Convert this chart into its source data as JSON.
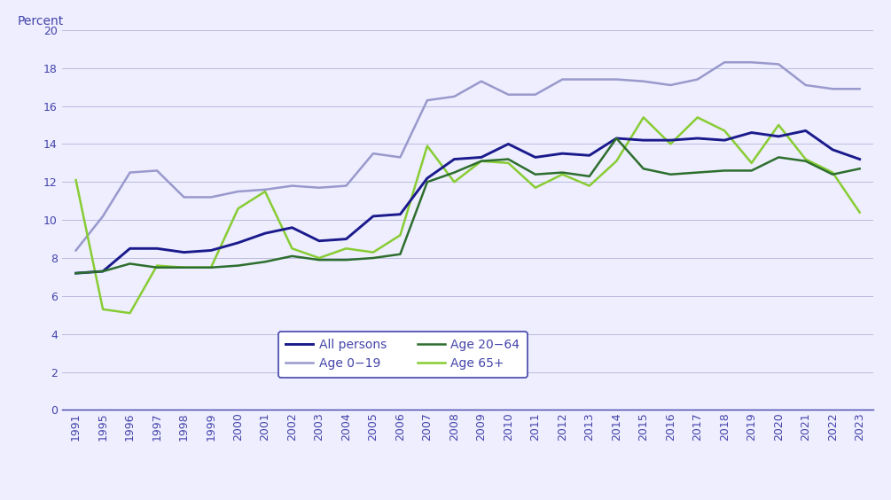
{
  "years": [
    1991,
    1995,
    1996,
    1997,
    1998,
    1999,
    2000,
    2001,
    2002,
    2003,
    2004,
    2005,
    2006,
    2007,
    2008,
    2009,
    2010,
    2011,
    2012,
    2013,
    2014,
    2015,
    2016,
    2017,
    2018,
    2019,
    2020,
    2021,
    2022,
    2023
  ],
  "all_persons": [
    7.2,
    7.3,
    8.5,
    8.5,
    8.3,
    8.4,
    8.8,
    9.3,
    9.6,
    8.9,
    9.0,
    10.2,
    10.3,
    12.2,
    13.2,
    13.3,
    14.0,
    13.3,
    13.5,
    13.4,
    14.3,
    14.2,
    14.2,
    14.3,
    14.2,
    14.6,
    14.4,
    14.7,
    13.7,
    13.2
  ],
  "age_0_19": [
    8.4,
    10.2,
    12.5,
    12.6,
    11.2,
    11.2,
    11.5,
    11.6,
    11.8,
    11.7,
    11.8,
    13.5,
    13.3,
    16.3,
    16.5,
    17.3,
    16.6,
    16.6,
    17.4,
    17.4,
    17.4,
    17.3,
    17.1,
    17.4,
    18.3,
    18.3,
    18.2,
    17.1,
    16.9,
    16.9
  ],
  "age_20_64": [
    7.2,
    7.3,
    7.7,
    7.5,
    7.5,
    7.5,
    7.6,
    7.8,
    8.1,
    7.9,
    7.9,
    8.0,
    8.2,
    12.0,
    12.5,
    13.1,
    13.2,
    12.4,
    12.5,
    12.3,
    14.3,
    12.7,
    12.4,
    12.5,
    12.6,
    12.6,
    13.3,
    13.1,
    12.4,
    12.7
  ],
  "age_65plus": [
    12.1,
    5.3,
    5.1,
    7.6,
    7.5,
    7.5,
    10.6,
    11.5,
    8.5,
    8.0,
    8.5,
    8.3,
    9.2,
    13.9,
    12.0,
    13.1,
    13.0,
    11.7,
    12.4,
    11.8,
    13.1,
    15.4,
    14.0,
    15.4,
    14.7,
    13.0,
    15.0,
    13.2,
    12.5,
    10.4
  ],
  "color_all_persons": "#1a1a8c",
  "color_age_0_19": "#9999cc",
  "color_age_20_64": "#2d6e2d",
  "color_age_65plus": "#88cc33",
  "ylabel": "Percent",
  "ylim": [
    0,
    20
  ],
  "yticks": [
    0,
    2,
    4,
    6,
    8,
    10,
    12,
    14,
    16,
    18,
    20
  ],
  "bg_color": "#eeeeff",
  "legend_labels": [
    "All persons",
    "Age 0−19",
    "Age 20−64",
    "Age 65+"
  ],
  "grid_color": "#bbbbdd",
  "line_width": 1.8,
  "tick_color": "#4444aa",
  "spine_color": "#4444aa"
}
